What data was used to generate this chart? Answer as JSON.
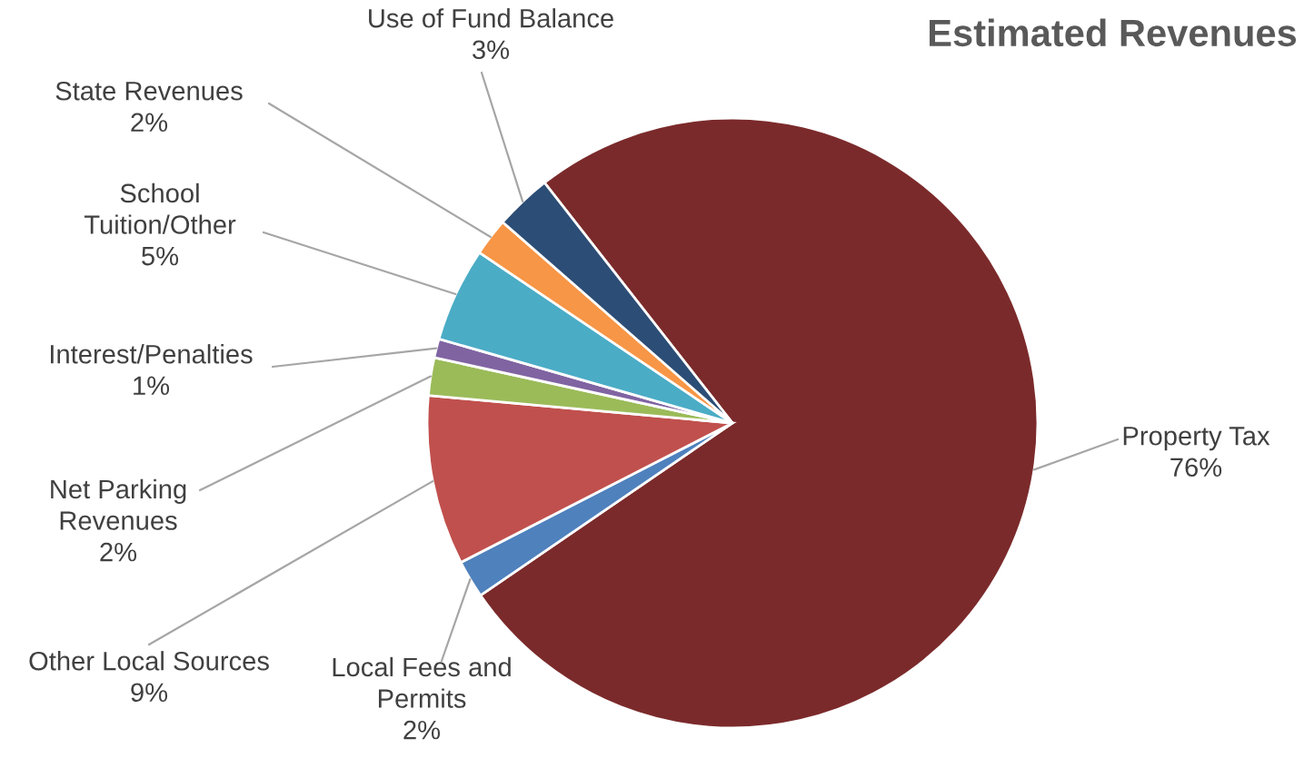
{
  "chart_data": {
    "type": "pie",
    "title": "Estimated Revenues",
    "categories": [
      "Property Tax",
      "Local Fees and\nPermits",
      "Other Local Sources",
      "Net Parking\nRevenues",
      "Interest/Penalties",
      "School\nTuition/Other",
      "State Revenues",
      "Use of Fund Balance"
    ],
    "values": [
      76,
      2,
      9,
      2,
      1,
      5,
      2,
      3
    ],
    "value_labels": [
      "76%",
      "2%",
      "9%",
      "2%",
      "1%",
      "5%",
      "2%",
      "3%"
    ],
    "colors": [
      "#7b2a2b",
      "#4f81bd",
      "#c0504d",
      "#9bbb59",
      "#8064a2",
      "#4bacc6",
      "#f79646",
      "#2c4d75"
    ],
    "legend": false
  }
}
